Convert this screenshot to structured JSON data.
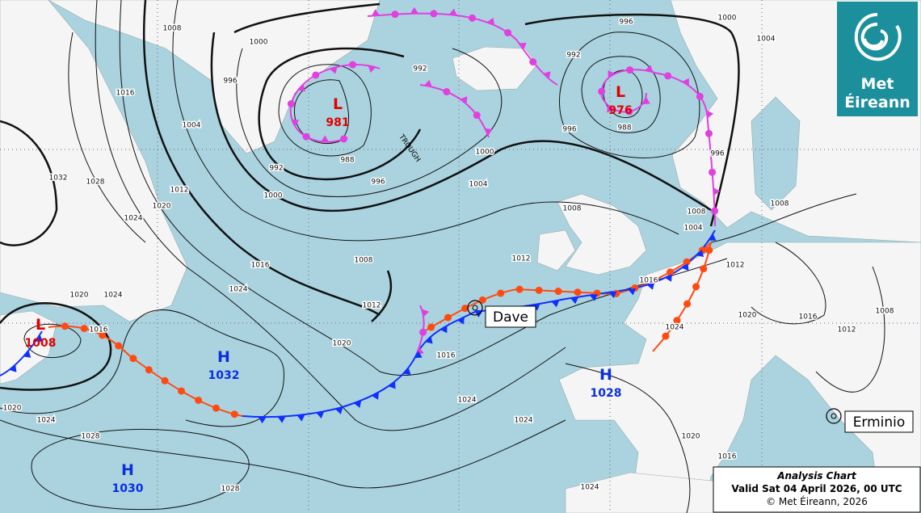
{
  "logo": {
    "line1": "Met",
    "line2": "Éireann"
  },
  "caption": {
    "title": "Analysis Chart",
    "valid": "Valid Sat 04 April 2026, 00 UTC",
    "copyright": "© Met Éireann, 2026"
  },
  "pressure_centers": [
    {
      "type": "L",
      "value": 981
    },
    {
      "type": "L",
      "value": 976
    },
    {
      "type": "L",
      "value": 1008
    },
    {
      "type": "H",
      "value": 1032
    },
    {
      "type": "H",
      "value": 1028
    },
    {
      "type": "H",
      "value": 1030
    }
  ],
  "storms": [
    "Dave",
    "Erminio"
  ],
  "trough_label": "TROUGH",
  "isobar_labels": [
    1000,
    996,
    1000,
    992,
    992,
    996,
    1004,
    1008,
    1012,
    1016,
    1020,
    1024,
    1028,
    1032,
    988,
    992,
    996,
    1000,
    1000,
    1004,
    1008,
    1004,
    1008,
    1008,
    1016,
    1024,
    1020,
    1024,
    1016,
    1012,
    1020,
    1016,
    1024,
    1012,
    1016,
    1012,
    1020,
    1024,
    1016,
    1012,
    1008,
    1020,
    1024,
    1028,
    1028,
    1024,
    1020,
    1016,
    1024,
    988,
    996,
    996,
    1008,
    1004
  ]
}
